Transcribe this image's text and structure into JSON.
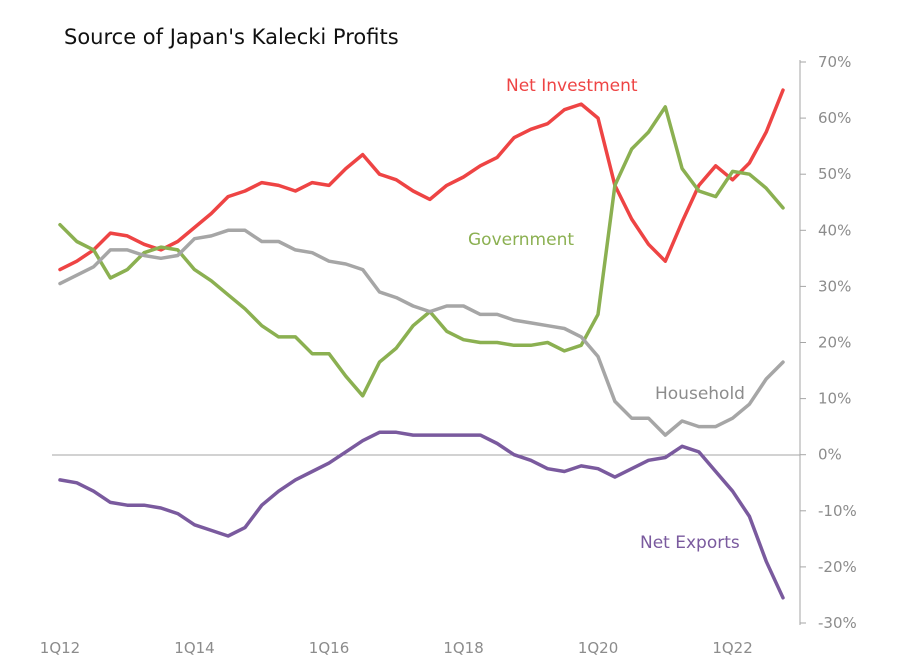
{
  "chart_data": {
    "type": "line",
    "title": "Source of Japan's Kalecki Profits",
    "xlabel": "",
    "ylabel": "",
    "y_axis_side": "right",
    "ylim": [
      -30,
      70
    ],
    "y_ticks": [
      70,
      60,
      50,
      40,
      30,
      20,
      10,
      0,
      -10,
      -20,
      -30
    ],
    "y_tick_labels": [
      "70%",
      "60%",
      "50%",
      "40%",
      "30%",
      "20%",
      "10%",
      "0%",
      "-10%",
      "-20%",
      "-30%"
    ],
    "x_tick_labels": [
      "1Q12",
      "1Q14",
      "1Q16",
      "1Q18",
      "1Q20",
      "1Q22"
    ],
    "x_tick_positions": [
      0,
      8,
      16,
      24,
      32,
      40
    ],
    "grid": false,
    "legend": "inline labels",
    "x": [
      "1Q12",
      "2Q12",
      "3Q12",
      "4Q12",
      "1Q13",
      "2Q13",
      "3Q13",
      "4Q13",
      "1Q14",
      "2Q14",
      "3Q14",
      "4Q14",
      "1Q15",
      "2Q15",
      "3Q15",
      "4Q15",
      "1Q16",
      "2Q16",
      "3Q16",
      "4Q16",
      "1Q17",
      "2Q17",
      "3Q17",
      "4Q17",
      "1Q18",
      "2Q18",
      "3Q18",
      "4Q18",
      "1Q19",
      "2Q19",
      "3Q19",
      "4Q19",
      "1Q20",
      "2Q20",
      "3Q20",
      "4Q20",
      "1Q21",
      "2Q21",
      "3Q21",
      "4Q21",
      "1Q22",
      "2Q22",
      "3Q22",
      "4Q22"
    ],
    "series": [
      {
        "name": "Net Investment",
        "color": "#ee4444",
        "values": [
          33,
          34.5,
          36.5,
          39.5,
          39,
          37.5,
          36.5,
          38,
          40.5,
          43,
          46,
          47,
          48.5,
          48,
          47,
          48.5,
          48,
          51,
          53.5,
          50,
          49,
          47,
          45.5,
          48,
          49.5,
          51.5,
          53,
          56.5,
          58,
          59,
          61.5,
          62.5,
          60,
          48,
          42,
          37.5,
          34.5,
          41.5,
          48,
          51.5,
          49,
          52,
          57.5,
          65
        ]
      },
      {
        "name": "Government",
        "color": "#8bb051",
        "values": [
          41,
          38,
          36.5,
          31.5,
          33,
          36,
          37,
          36.5,
          33,
          31,
          28.5,
          26,
          23,
          21,
          21,
          18,
          18,
          14,
          10.5,
          16.5,
          19,
          23,
          25.5,
          22,
          20.5,
          20,
          20,
          19.5,
          19.5,
          20,
          18.5,
          19.5,
          25,
          48,
          54.5,
          57.5,
          62,
          51,
          47,
          46,
          50.5,
          50,
          47.5,
          44
        ]
      },
      {
        "name": "Household",
        "color": "#a6a6a6",
        "values": [
          30.5,
          32,
          33.5,
          36.5,
          36.5,
          35.5,
          35,
          35.5,
          38.5,
          39,
          40,
          40,
          38,
          38,
          36.5,
          36,
          34.5,
          34,
          33,
          29,
          28,
          26.5,
          25.5,
          26.5,
          26.5,
          25,
          25,
          24,
          23.5,
          23,
          22.5,
          21,
          17.5,
          9.5,
          6.5,
          6.5,
          3.5,
          6,
          5,
          5,
          6.5,
          9,
          13.5,
          16.5
        ]
      },
      {
        "name": "Net Exports",
        "color": "#7a5a9e",
        "values": [
          -4.5,
          -5,
          -6.5,
          -8.5,
          -9,
          -9,
          -9.5,
          -10.5,
          -12.5,
          -13.5,
          -14.5,
          -13,
          -9,
          -6.5,
          -4.5,
          -3,
          -1.5,
          0.5,
          2.5,
          4,
          4,
          3.5,
          3.5,
          3.5,
          3.5,
          3.5,
          2,
          0,
          -1,
          -2.5,
          -3,
          -2,
          -2.5,
          -4,
          -2.5,
          -1,
          -0.5,
          1.5,
          0.5,
          -3,
          -6.5,
          -11,
          -19,
          -25.5
        ]
      }
    ]
  }
}
